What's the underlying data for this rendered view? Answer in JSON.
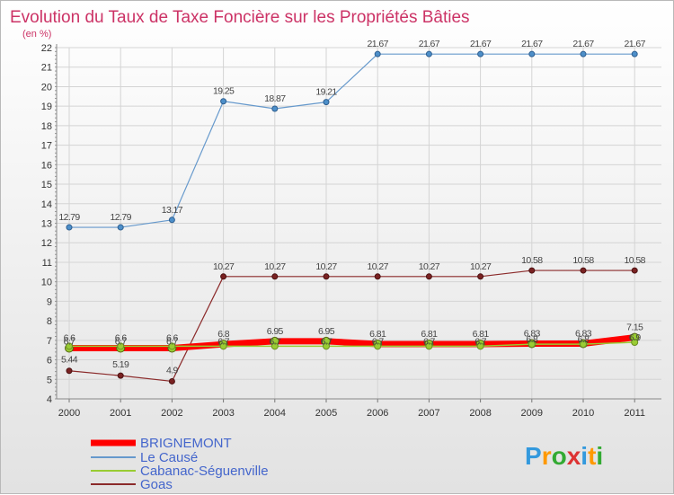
{
  "chart_data": {
    "type": "line",
    "title": "Evolution du Taux de Taxe Foncière sur les Propriétés Bâties",
    "ylabel": "(en %)",
    "xlabel": "",
    "ylim": [
      4,
      22
    ],
    "yticks": [
      "4",
      "5",
      "6",
      "7",
      "8",
      "9",
      "10",
      "11",
      "12",
      "13",
      "14",
      "15",
      "16",
      "17",
      "18",
      "19",
      "20",
      "21",
      "22"
    ],
    "categories": [
      "2000",
      "2001",
      "2002",
      "2003",
      "2004",
      "2005",
      "2006",
      "2007",
      "2008",
      "2009",
      "2010",
      "2011"
    ],
    "series": [
      {
        "name": "BRIGNEMONT",
        "color": "#ff0000",
        "values": [
          6.6,
          6.6,
          6.6,
          6.8,
          6.95,
          6.95,
          6.81,
          6.81,
          6.81,
          6.83,
          6.83,
          7.15
        ],
        "labels": [
          "6.6",
          "6.6",
          "6.6",
          "6.8",
          "6.95",
          "6.95",
          "6.81",
          "6.81",
          "6.81",
          "6.83",
          "6.83",
          "7.15"
        ]
      },
      {
        "name": "Le Causé",
        "color": "#6699cc",
        "values": [
          12.79,
          12.79,
          13.17,
          19.25,
          18.87,
          19.21,
          21.67,
          21.67,
          21.67,
          21.67,
          21.67,
          21.67
        ],
        "labels": [
          "12.79",
          "12.79",
          "13.17",
          "19.25",
          "18.87",
          "19.21",
          "21.67",
          "21.67",
          "21.67",
          "21.67",
          "21.67",
          "21.67"
        ]
      },
      {
        "name": "Cabanac-Séguenville",
        "color": "#99cc33",
        "values": [
          6.7,
          6.7,
          6.7,
          6.7,
          6.7,
          6.7,
          6.7,
          6.7,
          6.7,
          6.8,
          6.8,
          6.9
        ],
        "labels": [
          "6.7",
          "6.7",
          "6.7",
          "6.7",
          "6.7",
          "6.7",
          "6.7",
          "6.7",
          "6.7",
          "6.8",
          "6.8",
          "6.9"
        ]
      },
      {
        "name": "Goas",
        "color": "#8b2a2a",
        "values": [
          5.44,
          5.19,
          4.9,
          10.27,
          10.27,
          10.27,
          10.27,
          10.27,
          10.27,
          10.58,
          10.58,
          10.58
        ],
        "labels": [
          "5.44",
          "5.19",
          "4.9",
          "10.27",
          "10.27",
          "10.27",
          "10.27",
          "10.27",
          "10.27",
          "10.58",
          "10.58",
          "10.58"
        ]
      }
    ]
  },
  "legend": {
    "items": [
      {
        "label": "BRIGNEMONT",
        "color": "#ff0000"
      },
      {
        "label": "Le Causé",
        "color": "#6699cc"
      },
      {
        "label": "Cabanac-Séguenville",
        "color": "#99cc33"
      },
      {
        "label": "Goas",
        "color": "#8b2a2a"
      }
    ]
  },
  "brand": {
    "logo_text": "Proxiti",
    "letters": [
      "P",
      "r",
      "o",
      "x",
      "i",
      "t",
      "i"
    ],
    "colors": [
      "#3399dd",
      "#ff9900",
      "#33aa33",
      "#dd3333",
      "#3399dd",
      "#ff9900",
      "#33aa33"
    ]
  }
}
